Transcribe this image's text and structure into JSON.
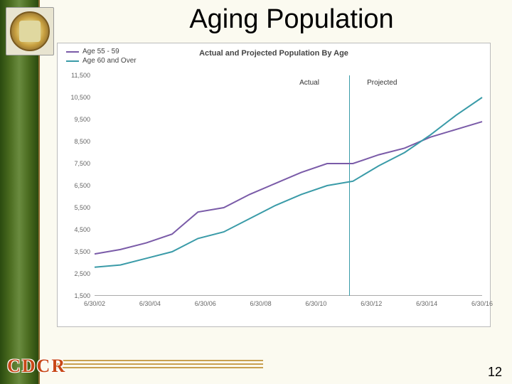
{
  "slide": {
    "title": "Aging Population",
    "page_number": "12",
    "footer_logo": "CDCR",
    "background_color": "#fbfaf0",
    "sidebar_gradient": [
      "#2a4a0f",
      "#6a8b3f"
    ]
  },
  "chart": {
    "type": "line",
    "title": "Actual and Projected Population By Age",
    "title_fontsize": 11,
    "legend": [
      {
        "label": "Age 55 - 59",
        "color": "#7a5ba8"
      },
      {
        "label": "Age 60 and Over",
        "color": "#3a9ba8"
      }
    ],
    "annotations": {
      "actual": "Actual",
      "projected": "Projected"
    },
    "y_axis": {
      "min": 1500,
      "max": 11500,
      "step": 1000,
      "labels": [
        "1,500",
        "2,500",
        "3,500",
        "4,500",
        "5,500",
        "6,500",
        "7,500",
        "8,500",
        "9,500",
        "10,500",
        "11,500"
      ]
    },
    "x_axis": {
      "labels": [
        "6/30/02",
        "6/30/04",
        "6/30/06",
        "6/30/08",
        "6/30/10",
        "6/30/12",
        "6/30/14",
        "6/30/16"
      ]
    },
    "divider_x_index": 4.6,
    "series": [
      {
        "name": "Age 55 - 59",
        "color": "#7a5ba8",
        "width": 2,
        "points": [
          3400,
          3600,
          3900,
          4300,
          5300,
          5500,
          6100,
          6600,
          7100,
          7500,
          7500,
          7900,
          8200,
          8700,
          9050,
          9400
        ]
      },
      {
        "name": "Age 60 and Over",
        "color": "#3a9ba8",
        "width": 2,
        "points": [
          2800,
          2900,
          3200,
          3500,
          4100,
          4400,
          5000,
          5600,
          6100,
          6500,
          6700,
          7400,
          8000,
          8800,
          9700,
          10500
        ]
      }
    ],
    "background_color": "#ffffff",
    "border_color": "#bbbbbb",
    "grid_color": "#e8e8e8",
    "axis_color": "#aaaaaa",
    "label_fontsize": 9,
    "label_color": "#666666"
  }
}
